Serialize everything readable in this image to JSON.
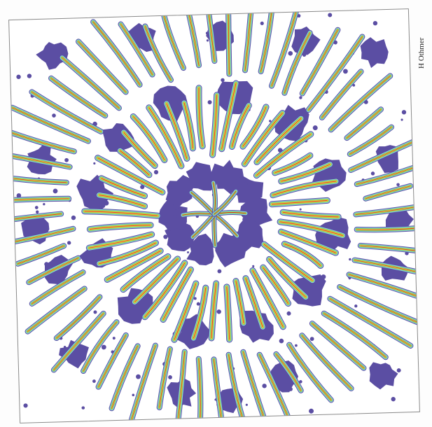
{
  "credit": "H Othmer",
  "colors": {
    "blob": "#5b4ea3",
    "outline": "#5b4ea3",
    "band_cyan": "#8fd9e6",
    "band_green": "#78c25a",
    "band_yellow": "#e9e24a",
    "band_red": "#e0301f",
    "background": "#ffffff"
  }
}
